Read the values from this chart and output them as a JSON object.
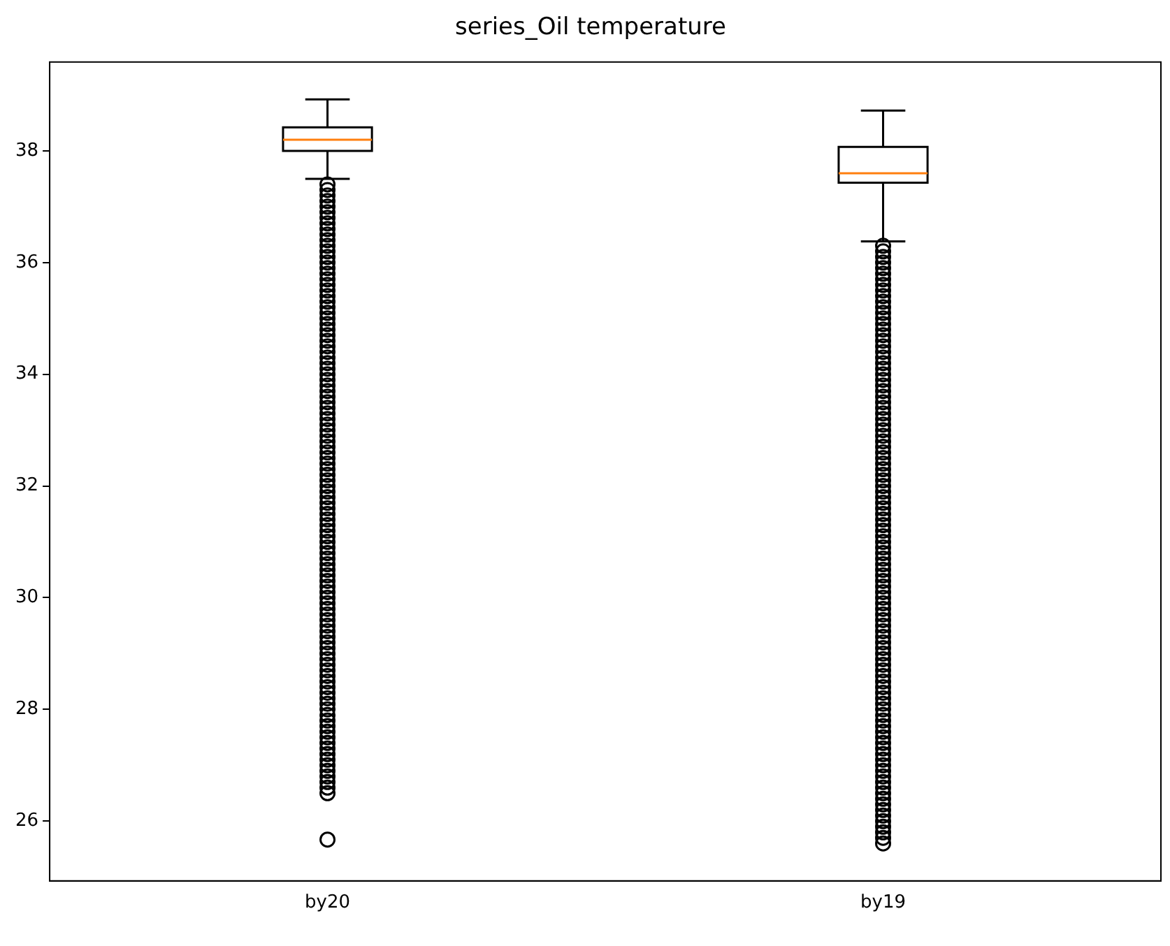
{
  "chart_data": {
    "type": "box",
    "title": "series_Oil temperature",
    "categories": [
      "by20",
      "by19"
    ],
    "boxes": [
      {
        "low": 37.5,
        "q1": 38.0,
        "median": 38.2,
        "q3": 38.42,
        "high": 38.92,
        "outliers": [
          37.4,
          37.3,
          37.2,
          37.1,
          37.0,
          36.9,
          36.8,
          36.7,
          36.6,
          36.5,
          36.4,
          36.3,
          36.2,
          36.1,
          36.0,
          35.9,
          35.8,
          35.7,
          35.6,
          35.5,
          35.4,
          35.3,
          35.2,
          35.1,
          35.0,
          34.9,
          34.8,
          34.7,
          34.6,
          34.5,
          34.4,
          34.3,
          34.2,
          34.1,
          34.0,
          33.9,
          33.8,
          33.7,
          33.6,
          33.5,
          33.4,
          33.3,
          33.2,
          33.1,
          33.0,
          32.9,
          32.8,
          32.7,
          32.6,
          32.5,
          32.4,
          32.3,
          32.2,
          32.1,
          32.0,
          31.9,
          31.8,
          31.7,
          31.6,
          31.5,
          31.4,
          31.3,
          31.2,
          31.1,
          31.0,
          30.9,
          30.8,
          30.7,
          30.6,
          30.5,
          30.4,
          30.3,
          30.2,
          30.1,
          30.0,
          29.9,
          29.8,
          29.7,
          29.6,
          29.5,
          29.4,
          29.3,
          29.2,
          29.1,
          29.0,
          28.9,
          28.8,
          28.7,
          28.6,
          28.5,
          28.4,
          28.3,
          28.2,
          28.1,
          28.0,
          27.9,
          27.8,
          27.7,
          27.6,
          27.5,
          27.4,
          27.3,
          27.2,
          27.1,
          27.0,
          26.9,
          26.8,
          26.7,
          26.6,
          26.5,
          25.67
        ]
      },
      {
        "low": 36.38,
        "q1": 37.43,
        "median": 37.6,
        "q3": 38.07,
        "high": 38.72,
        "outliers": [
          36.3,
          36.2,
          36.1,
          36.0,
          35.9,
          35.8,
          35.7,
          35.6,
          35.5,
          35.4,
          35.3,
          35.2,
          35.1,
          35.0,
          34.9,
          34.8,
          34.7,
          34.6,
          34.5,
          34.4,
          34.3,
          34.2,
          34.1,
          34.0,
          33.9,
          33.8,
          33.7,
          33.6,
          33.5,
          33.4,
          33.3,
          33.2,
          33.1,
          33.0,
          32.9,
          32.8,
          32.7,
          32.6,
          32.5,
          32.4,
          32.3,
          32.2,
          32.1,
          32.0,
          31.9,
          31.8,
          31.7,
          31.6,
          31.5,
          31.4,
          31.3,
          31.2,
          31.1,
          31.0,
          30.9,
          30.8,
          30.7,
          30.6,
          30.5,
          30.4,
          30.3,
          30.2,
          30.1,
          30.0,
          29.9,
          29.8,
          29.7,
          29.6,
          29.5,
          29.4,
          29.3,
          29.2,
          29.1,
          29.0,
          28.9,
          28.8,
          28.7,
          28.6,
          28.5,
          28.4,
          28.3,
          28.2,
          28.1,
          28.0,
          27.9,
          27.8,
          27.7,
          27.6,
          27.5,
          27.4,
          27.3,
          27.2,
          27.1,
          27.0,
          26.9,
          26.8,
          26.7,
          26.6,
          26.5,
          26.4,
          26.3,
          26.2,
          26.1,
          26.0,
          25.9,
          25.8,
          25.7,
          25.6
        ]
      }
    ],
    "color": "#000000",
    "ylim": [
      24.93,
      39.59
    ],
    "yticks": [
      26,
      28,
      30,
      32,
      34,
      36,
      38
    ],
    "grid": false,
    "legend": false,
    "marker": "circle"
  }
}
